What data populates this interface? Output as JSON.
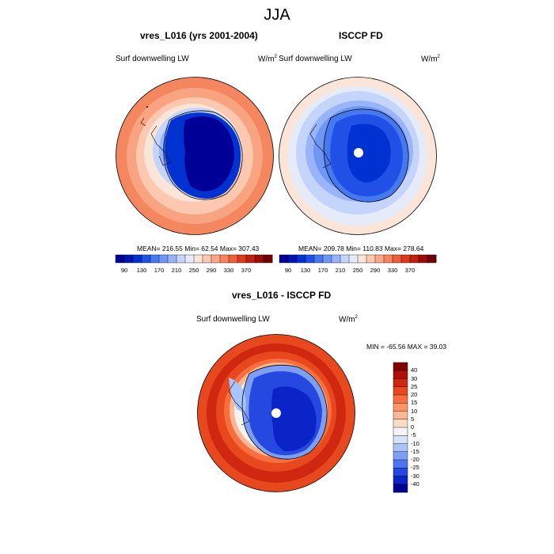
{
  "figure": {
    "title": "JJA",
    "unit_label": "W/m",
    "unit_exp": "2"
  },
  "panels": [
    {
      "title": "vres_L016 (yrs 2001-2004)",
      "left_label": "Surf downwelling LW",
      "stats": "MEAN= 216.55  Min=  62.54  Max= 307.43"
    },
    {
      "title": "ISCCP FD",
      "left_label": "Surf downwelling LW",
      "stats": "MEAN= 209.78  Min= 110.83  Max= 278.64"
    },
    {
      "title": "vres_L016 - ISCCP FD",
      "left_label": "Surf downwelling LW",
      "stats": "MIN = -65.56 MAX =  39.03"
    }
  ],
  "colorbars": {
    "absolute": {
      "levels": [
        "90",
        "130",
        "170",
        "210",
        "250",
        "290",
        "330",
        "370"
      ],
      "colors": [
        "#000096",
        "#0014b4",
        "#0032d2",
        "#2050e6",
        "#4678f0",
        "#6e96f5",
        "#9ab4fa",
        "#c4d4fa",
        "#e6ebfa",
        "#fbe4d8",
        "#fcc8b0",
        "#fca888",
        "#f8845e",
        "#ef5e3a",
        "#dc3a1e",
        "#c02010",
        "#9a0c06",
        "#700000"
      ]
    },
    "difference": {
      "levels": [
        "40",
        "30",
        "25",
        "20",
        "15",
        "10",
        "5",
        "0",
        "-5",
        "-10",
        "-15",
        "-20",
        "-25",
        "-30",
        "-40"
      ],
      "colors": [
        "#800000",
        "#b01006",
        "#d02810",
        "#e8481e",
        "#f86e3e",
        "#fc9468",
        "#fcb894",
        "#fcdcc4",
        "#f4f4f4",
        "#d4e2fa",
        "#a8c4fa",
        "#7c9ef5",
        "#4f74ef",
        "#2548e0",
        "#0a24c8",
        "#000090"
      ]
    }
  }
}
